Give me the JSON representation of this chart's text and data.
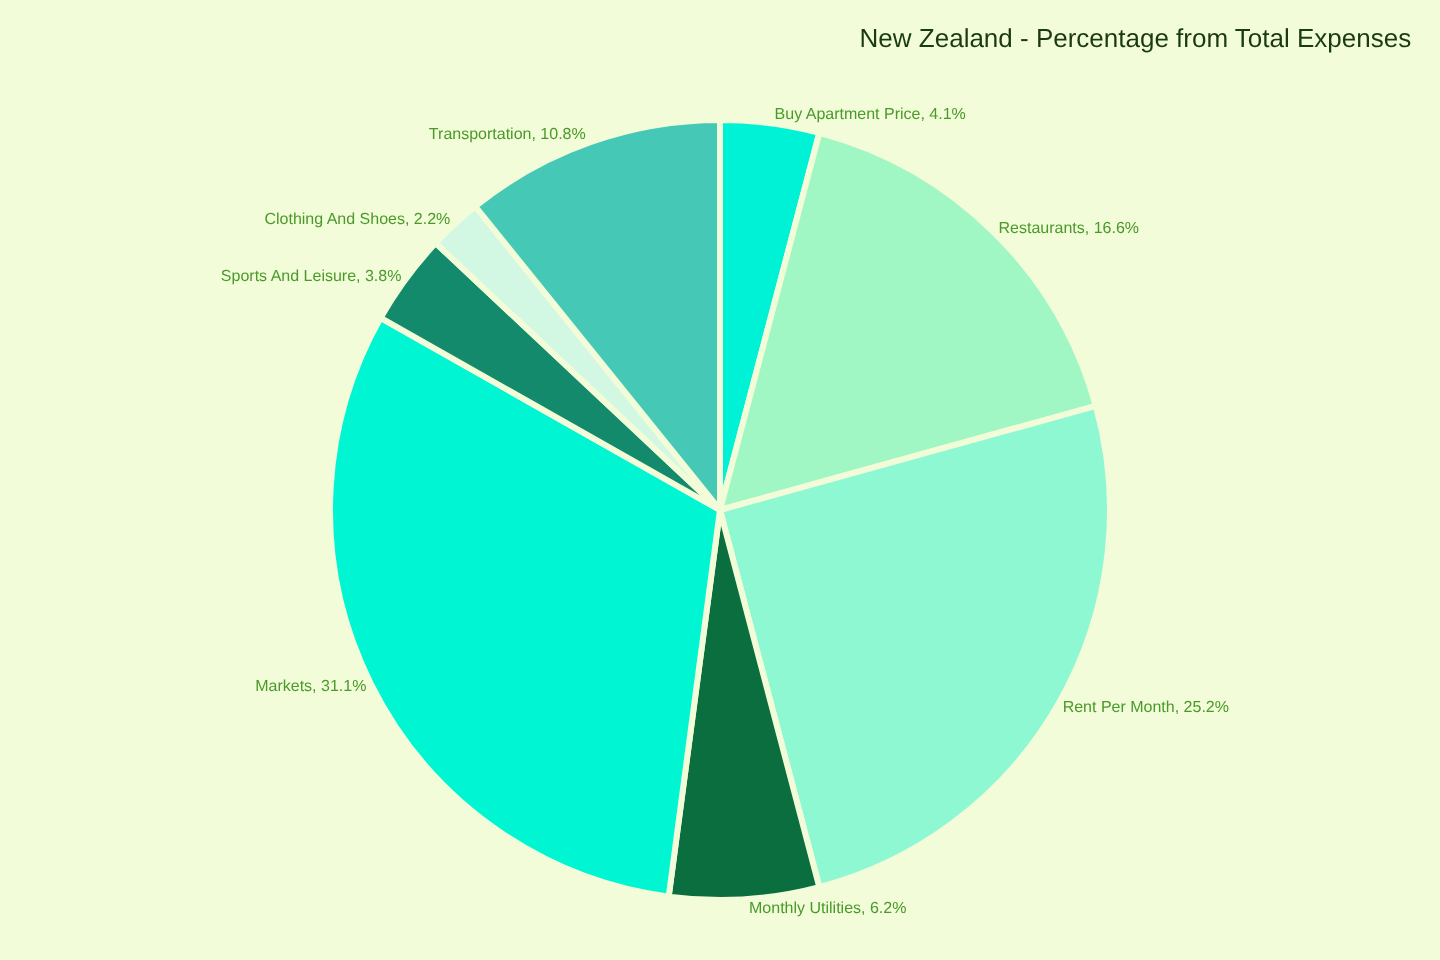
{
  "chart_data": {
    "type": "pie",
    "title": "New Zealand - Percentage from Total Expenses",
    "categories": [
      "Buy Apartment Price",
      "Restaurants",
      "Rent Per Month",
      "Monthly Utilities",
      "Markets",
      "Sports And Leisure",
      "Clothing And Shoes",
      "Transportation"
    ],
    "values": [
      4.1,
      16.6,
      25.2,
      6.2,
      31.1,
      3.8,
      2.2,
      10.8
    ],
    "value_labels": [
      "4.1%",
      "16.6%",
      "25.2%",
      "6.2%",
      "31.1%",
      "3.8%",
      "2.2%",
      "10.8%"
    ],
    "colors": [
      "#00f2d6",
      "#a0f7c4",
      "#8ef8d2",
      "#0b6e3f",
      "#00f6d2",
      "#128a6b",
      "#d2f7e2",
      "#45c9b6"
    ],
    "legend": false
  }
}
